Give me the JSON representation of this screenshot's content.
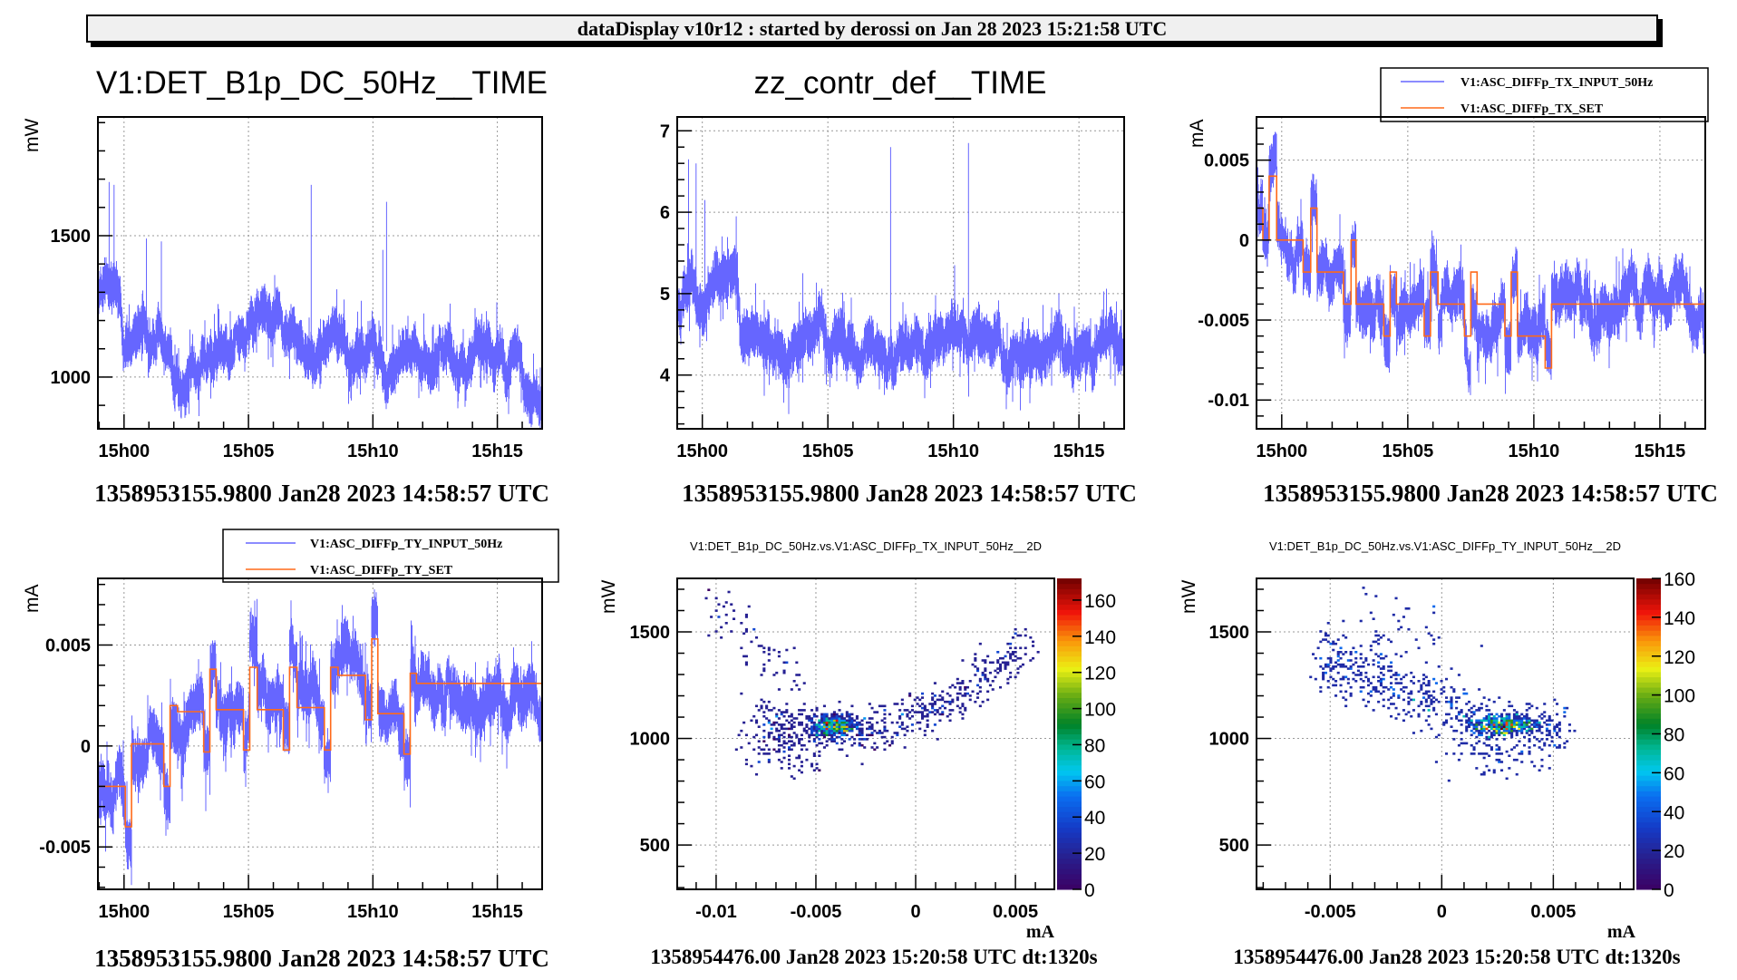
{
  "header": {
    "title": "dataDisplay v10r12 : started by derossi on Jan 28 2023 15:21:58 UTC"
  },
  "colors": {
    "input_series": "#6666ff",
    "set_series": "#ff6a1a",
    "grid": "#999999",
    "header_bg": "#f0f0f0"
  },
  "chart_data": [
    {
      "id": "top-left",
      "type": "line",
      "title": "V1:DET_B1p_DC_50Hz__TIME",
      "xlabel": "",
      "ylabel": "mW",
      "x_tick_labels": [
        "15h00",
        "15h05",
        "15h10",
        "15h15"
      ],
      "x_ticks_minutes_after_1500": [
        0,
        5,
        10,
        15
      ],
      "xlim_minutes_after_1500": [
        -1.05,
        16.8
      ],
      "y_tick_labels": [
        "1000",
        "1500"
      ],
      "y_ticks": [
        1000,
        1500
      ],
      "ylim": [
        817,
        1920
      ],
      "grid": true,
      "footer": "1358953155.9800 Jan28 2023 14:58:57 UTC",
      "series": [
        {
          "name": "V1:DET_B1p_DC_50Hz",
          "color": "#6666ff",
          "style": "noise",
          "baseline": [
            [
              -1.05,
              1260
            ],
            [
              -0.3,
              1330
            ],
            [
              0.0,
              1180
            ],
            [
              1.5,
              1180
            ],
            [
              1.6,
              1070
            ],
            [
              3.0,
              1060
            ],
            [
              4.0,
              1080
            ],
            [
              6.0,
              1070
            ],
            [
              7.5,
              1080
            ],
            [
              9.5,
              1120
            ],
            [
              10.3,
              1150
            ],
            [
              10.6,
              1080
            ],
            [
              11.7,
              1070
            ],
            [
              11.9,
              990
            ],
            [
              13.0,
              1050
            ],
            [
              16.8,
              1050
            ]
          ],
          "noise": 55,
          "spikes": [
            [
              -0.4,
              1680
            ],
            [
              -0.6,
              1690
            ],
            [
              0.9,
              1490
            ],
            [
              1.5,
              1480
            ],
            [
              7.52,
              1680
            ],
            [
              10.55,
              1620
            ],
            [
              10.4,
              1450
            ]
          ]
        }
      ]
    },
    {
      "id": "top-middle",
      "type": "line",
      "title": "zz_contr_def__TIME",
      "xlabel": "",
      "ylabel": "",
      "x_tick_labels": [
        "15h00",
        "15h05",
        "15h10",
        "15h15"
      ],
      "x_ticks_minutes_after_1500": [
        0,
        5,
        10,
        15
      ],
      "xlim_minutes_after_1500": [
        -1.0,
        16.8
      ],
      "y_tick_labels": [
        "4",
        "5",
        "6",
        "7"
      ],
      "y_ticks": [
        4,
        5,
        6,
        7
      ],
      "ylim": [
        3.34,
        7.17
      ],
      "grid": true,
      "footer": "1358953155.9800 Jan28 2023 14:58:57 UTC",
      "series": [
        {
          "name": "zz_contr_def",
          "color": "#6666ff",
          "style": "noise",
          "baseline": [
            [
              -1.0,
              4.9
            ],
            [
              -0.5,
              5.3
            ],
            [
              0.0,
              4.8
            ],
            [
              1.4,
              4.8
            ],
            [
              1.5,
              4.3
            ],
            [
              3.0,
              4.25
            ],
            [
              5.0,
              4.35
            ],
            [
              7.0,
              4.3
            ],
            [
              9.5,
              4.45
            ],
            [
              10.1,
              4.6
            ],
            [
              10.6,
              4.35
            ],
            [
              11.8,
              4.3
            ],
            [
              12.1,
              4.0
            ],
            [
              13.0,
              4.25
            ],
            [
              16.8,
              4.25
            ]
          ],
          "noise": 0.2,
          "spikes": [
            [
              -0.55,
              6.65
            ],
            [
              -0.25,
              6.6
            ],
            [
              0.1,
              6.15
            ],
            [
              1.35,
              5.95
            ],
            [
              7.5,
              6.8
            ],
            [
              10.6,
              6.85
            ],
            [
              10.05,
              5.35
            ],
            [
              4.0,
              5.25
            ]
          ]
        }
      ]
    },
    {
      "id": "top-right",
      "type": "line",
      "title": "",
      "xlabel": "",
      "ylabel": "mA",
      "x_tick_labels": [
        "15h00",
        "15h05",
        "15h10",
        "15h15"
      ],
      "x_ticks_minutes_after_1500": [
        0,
        5,
        10,
        15
      ],
      "xlim_minutes_after_1500": [
        -1.0,
        16.8
      ],
      "y_tick_labels": [
        "-0.01",
        "-0.005",
        "0",
        "0.005"
      ],
      "y_ticks": [
        -0.01,
        -0.005,
        0,
        0.005
      ],
      "ylim": [
        -0.0118,
        0.0077
      ],
      "grid": true,
      "legend": {
        "position": "top-right",
        "entries": [
          "V1:ASC_DIFFp_TX_INPUT_50Hz",
          "V1:ASC_DIFFp_TX_SET"
        ]
      },
      "footer": "1358953155.9800 Jan28 2023 14:58:57 UTC",
      "series": [
        {
          "name": "V1:ASC_DIFFp_TX_INPUT_50Hz",
          "color": "#6666ff",
          "style": "noise-around-steps",
          "noise": 0.0011
        },
        {
          "name": "V1:ASC_DIFFp_TX_SET",
          "color": "#ff6a1a",
          "style": "step",
          "steps": [
            [
              -1.0,
              -0.0118
            ],
            [
              -1.0,
              0.002
            ],
            [
              -0.75,
              0.0
            ],
            [
              -0.5,
              0.004
            ],
            [
              -0.2,
              0.0
            ],
            [
              0.85,
              -0.002
            ],
            [
              1.15,
              0.002
            ],
            [
              1.4,
              -0.002
            ],
            [
              2.45,
              -0.004
            ],
            [
              2.75,
              0.0
            ],
            [
              2.95,
              -0.004
            ],
            [
              4.05,
              -0.006
            ],
            [
              4.3,
              -0.002
            ],
            [
              4.55,
              -0.004
            ],
            [
              5.65,
              -0.006
            ],
            [
              5.9,
              -0.002
            ],
            [
              6.2,
              -0.004
            ],
            [
              7.25,
              -0.006
            ],
            [
              7.5,
              -0.002
            ],
            [
              7.75,
              -0.004
            ],
            [
              8.85,
              -0.006
            ],
            [
              9.1,
              -0.002
            ],
            [
              9.35,
              -0.006
            ],
            [
              10.45,
              -0.008
            ],
            [
              10.7,
              -0.004
            ],
            [
              11.0,
              -0.004
            ],
            [
              16.8,
              -0.004
            ]
          ]
        }
      ]
    },
    {
      "id": "bottom-left",
      "type": "line",
      "title": "",
      "xlabel": "",
      "ylabel": "mA",
      "x_tick_labels": [
        "15h00",
        "15h05",
        "15h10",
        "15h15"
      ],
      "x_ticks_minutes_after_1500": [
        0,
        5,
        10,
        15
      ],
      "xlim_minutes_after_1500": [
        -1.05,
        16.8
      ],
      "y_tick_labels": [
        "-0.005",
        "0",
        "0.005"
      ],
      "y_ticks": [
        -0.005,
        0,
        0.005
      ],
      "ylim": [
        -0.0071,
        0.0083
      ],
      "grid": true,
      "legend": {
        "position": "top-right",
        "entries": [
          "V1:ASC_DIFFp_TY_INPUT_50Hz",
          "V1:ASC_DIFFp_TY_SET"
        ]
      },
      "footer": "1358953155.9800 Jan28 2023 14:58:57 UTC",
      "series": [
        {
          "name": "V1:ASC_DIFFp_TY_INPUT_50Hz",
          "color": "#6666ff",
          "style": "noise-around-steps",
          "noise": 0.0009
        },
        {
          "name": "V1:ASC_DIFFp_TY_SET",
          "color": "#ff6a1a",
          "style": "step",
          "steps": [
            [
              -1.05,
              -0.0071
            ],
            [
              -1.05,
              -0.002
            ],
            [
              0.05,
              -0.004
            ],
            [
              0.3,
              0.0001
            ],
            [
              1.6,
              -0.002
            ],
            [
              1.85,
              0.002
            ],
            [
              2.15,
              0.0017
            ],
            [
              3.2,
              -0.0003
            ],
            [
              3.45,
              0.0038
            ],
            [
              3.7,
              0.0018
            ],
            [
              4.8,
              -0.0002
            ],
            [
              5.05,
              0.0039
            ],
            [
              5.35,
              0.0018
            ],
            [
              6.4,
              -0.0002
            ],
            [
              6.65,
              0.0039
            ],
            [
              6.95,
              0.0019
            ],
            [
              8.05,
              -0.0002
            ],
            [
              8.3,
              0.0039
            ],
            [
              8.6,
              0.0035
            ],
            [
              9.7,
              0.0013
            ],
            [
              9.95,
              0.0053
            ],
            [
              10.2,
              0.0016
            ],
            [
              11.25,
              -0.0004
            ],
            [
              11.5,
              0.0036
            ],
            [
              11.75,
              0.0031
            ],
            [
              16.8,
              0.0031
            ]
          ]
        }
      ]
    },
    {
      "id": "bottom-middle",
      "type": "heatmap",
      "title": "V1:DET_B1p_DC_50Hz.vs.V1:ASC_DIFFp_TX_INPUT_50Hz__2D",
      "xlabel": "mA",
      "ylabel": "mW",
      "x_tick_labels": [
        "-0.01",
        "-0.005",
        "0",
        "0.005"
      ],
      "x_ticks": [
        -0.01,
        -0.005,
        0,
        0.005
      ],
      "xlim": [
        -0.01195,
        0.00695
      ],
      "y_tick_labels": [
        "500",
        "1000",
        "1500"
      ],
      "y_ticks": [
        500,
        1000,
        1500
      ],
      "ylim": [
        292,
        1751
      ],
      "grid": true,
      "colorbar": {
        "tick_labels": [
          "0",
          "20",
          "40",
          "60",
          "80",
          "100",
          "120",
          "140",
          "160"
        ],
        "ticks": [
          0,
          20,
          40,
          60,
          80,
          100,
          120,
          140,
          160
        ],
        "range": [
          0,
          172
        ]
      },
      "peak": {
        "x": -0.0041,
        "y": 1060,
        "count": 172
      },
      "footer": "1358954476.00 Jan28 2023 15:20:58 UTC dt:1320s"
    },
    {
      "id": "bottom-right",
      "type": "heatmap",
      "title": "V1:DET_B1p_DC_50Hz.vs.V1:ASC_DIFFp_TY_INPUT_50Hz__2D",
      "xlabel": "mA",
      "ylabel": "mW",
      "x_tick_labels": [
        "-0.005",
        "0",
        "0.005"
      ],
      "x_ticks": [
        -0.005,
        0,
        0.005
      ],
      "xlim": [
        -0.0083,
        0.0086
      ],
      "y_tick_labels": [
        "500",
        "1000",
        "1500"
      ],
      "y_ticks": [
        500,
        1000,
        1500
      ],
      "ylim": [
        292,
        1751
      ],
      "grid": true,
      "colorbar": {
        "tick_labels": [
          "0",
          "20",
          "40",
          "60",
          "80",
          "100",
          "120",
          "140",
          "160"
        ],
        "ticks": [
          0,
          20,
          40,
          60,
          80,
          100,
          120,
          140,
          160
        ],
        "range": [
          0,
          160
        ]
      },
      "peak": {
        "x": 0.0028,
        "y": 1060,
        "count": 160
      },
      "footer": "1358954476.00 Jan28 2023 15:20:58 UTC dt:1320s"
    }
  ]
}
